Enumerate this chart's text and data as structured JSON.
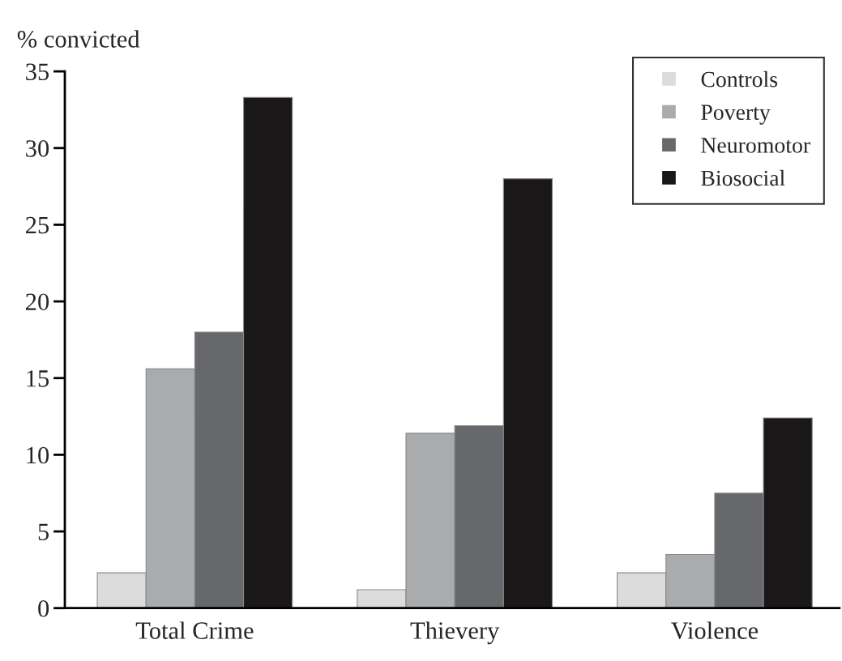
{
  "chart_data": {
    "type": "bar",
    "ylabel": "% convicted",
    "categories": [
      "Total Crime",
      "Thievery",
      "Violence"
    ],
    "series": [
      {
        "name": "Controls",
        "color": "#dcdcdd",
        "values": [
          2.3,
          1.2,
          2.3
        ]
      },
      {
        "name": "Poverty",
        "color": "#a9abad",
        "values": [
          15.6,
          11.4,
          3.5
        ]
      },
      {
        "name": "Neuromotor",
        "color": "#67686b",
        "values": [
          18.0,
          11.9,
          7.5
        ]
      },
      {
        "name": "Biosocial",
        "color": "#1a1718",
        "values": [
          33.3,
          28.0,
          12.4
        ]
      }
    ],
    "ylim": [
      0,
      35
    ],
    "yticks": [
      0,
      5,
      10,
      15,
      20,
      25,
      30,
      35
    ],
    "grid": false,
    "legend": "top right",
    "marker": "square"
  }
}
